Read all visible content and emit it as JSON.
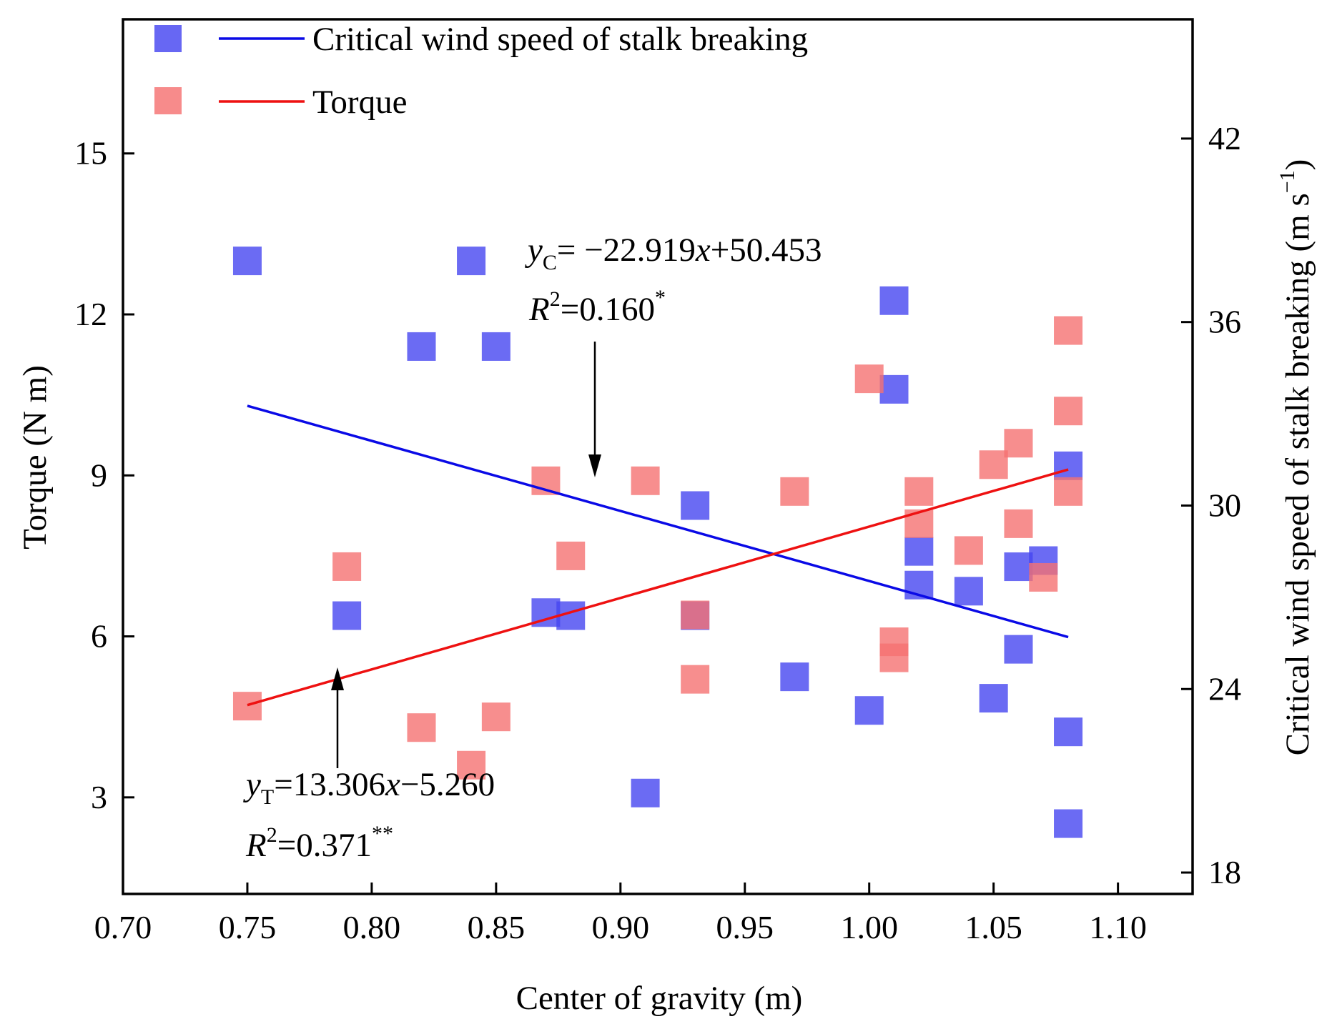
{
  "chart_data": {
    "type": "scatter",
    "xlabel": "Center of gravity (m)",
    "ylabel_left": "Torque (N m)",
    "ylabel_right": "Critical wind speed of stalk breaking (m s",
    "ylabel_right_sup": "−1",
    "ylabel_right_close": ")",
    "xlim": [
      0.7,
      1.13
    ],
    "ylim_left": [
      1.2,
      17.5
    ],
    "ylim_right": [
      17.3,
      45.9
    ],
    "xticks": [
      0.7,
      0.75,
      0.8,
      0.85,
      0.9,
      0.95,
      1.0,
      1.05,
      1.1
    ],
    "xtick_labels": [
      "0.70",
      "0.75",
      "0.80",
      "0.85",
      "0.90",
      "0.95",
      "1.00",
      "1.05",
      "1.10"
    ],
    "yticks_left": [
      3,
      6,
      9,
      12,
      15
    ],
    "ytick_labels_left": [
      "3",
      "6",
      "9",
      "12",
      "15"
    ],
    "yticks_right": [
      18,
      24,
      30,
      36,
      42
    ],
    "ytick_labels_right": [
      "18",
      "24",
      "30",
      "36",
      "42"
    ],
    "legend": [
      {
        "name": "Critical wind speed of stalk breaking",
        "color": "#3333ee"
      },
      {
        "name": "Torque",
        "color": "#f57272"
      }
    ],
    "series": [
      {
        "name": "Critical wind speed of stalk breaking",
        "axis": "right",
        "marker_color": "#4646f0",
        "line_color": "#0a0ae6",
        "points": [
          {
            "x": 0.75,
            "y": 38.0
          },
          {
            "x": 0.79,
            "y": 26.4
          },
          {
            "x": 0.82,
            "y": 35.2
          },
          {
            "x": 0.84,
            "y": 38.0
          },
          {
            "x": 0.85,
            "y": 35.2
          },
          {
            "x": 0.87,
            "y": 26.5
          },
          {
            "x": 0.88,
            "y": 26.4
          },
          {
            "x": 0.91,
            "y": 20.6
          },
          {
            "x": 0.93,
            "y": 30.0
          },
          {
            "x": 0.93,
            "y": 26.4
          },
          {
            "x": 0.97,
            "y": 24.4
          },
          {
            "x": 1.0,
            "y": 23.3
          },
          {
            "x": 1.01,
            "y": 36.7
          },
          {
            "x": 1.01,
            "y": 33.8
          },
          {
            "x": 1.02,
            "y": 28.5
          },
          {
            "x": 1.02,
            "y": 27.4
          },
          {
            "x": 1.04,
            "y": 27.2
          },
          {
            "x": 1.05,
            "y": 23.7
          },
          {
            "x": 1.06,
            "y": 28.0
          },
          {
            "x": 1.06,
            "y": 25.3
          },
          {
            "x": 1.07,
            "y": 28.2
          },
          {
            "x": 1.08,
            "y": 31.3
          },
          {
            "x": 1.08,
            "y": 22.6
          },
          {
            "x": 1.08,
            "y": 19.6
          }
        ],
        "fit": {
          "x": [
            0.75,
            1.08
          ],
          "y": [
            33.26,
            25.7
          ]
        }
      },
      {
        "name": "Torque",
        "axis": "left",
        "marker_color": "#f57272",
        "line_color": "#ee1111",
        "points": [
          {
            "x": 0.75,
            "y": 4.7
          },
          {
            "x": 0.79,
            "y": 7.3
          },
          {
            "x": 0.82,
            "y": 4.3
          },
          {
            "x": 0.84,
            "y": 3.6
          },
          {
            "x": 0.85,
            "y": 4.5
          },
          {
            "x": 0.87,
            "y": 8.9
          },
          {
            "x": 0.88,
            "y": 7.5
          },
          {
            "x": 0.91,
            "y": 8.9
          },
          {
            "x": 0.93,
            "y": 6.4
          },
          {
            "x": 0.93,
            "y": 5.2
          },
          {
            "x": 0.97,
            "y": 8.7
          },
          {
            "x": 1.0,
            "y": 10.8
          },
          {
            "x": 1.01,
            "y": 5.9
          },
          {
            "x": 1.01,
            "y": 5.6
          },
          {
            "x": 1.02,
            "y": 8.7
          },
          {
            "x": 1.02,
            "y": 8.1
          },
          {
            "x": 1.04,
            "y": 7.6
          },
          {
            "x": 1.05,
            "y": 9.2
          },
          {
            "x": 1.06,
            "y": 9.6
          },
          {
            "x": 1.06,
            "y": 8.1
          },
          {
            "x": 1.07,
            "y": 7.1
          },
          {
            "x": 1.08,
            "y": 11.7
          },
          {
            "x": 1.08,
            "y": 10.2
          },
          {
            "x": 1.08,
            "y": 8.7
          }
        ],
        "fit": {
          "x": [
            0.75,
            1.08
          ],
          "y": [
            4.72,
            9.11
          ]
        }
      }
    ],
    "annotations": [
      {
        "id": "wind-fit",
        "eq_y": "y",
        "eq_sub": "C",
        "eq_rest": "= −22.919",
        "eq_x": "x",
        "eq_tail": "+50.453",
        "r2_r": "R",
        "r2_sup": "2",
        "r2_value": "=0.160",
        "r2_sig": "*",
        "arrow_target": {
          "x": 0.887,
          "y": 8.5
        }
      },
      {
        "id": "torque-fit",
        "eq_y": "y",
        "eq_sub": "T",
        "eq_rest": "=13.306",
        "eq_x": "x",
        "eq_tail": "−5.260",
        "r2_r": "R",
        "r2_sup": "2",
        "r2_value": "=0.371",
        "r2_sig": "**",
        "arrow_target": {
          "x": 0.784,
          "y": 5.3
        }
      }
    ]
  }
}
